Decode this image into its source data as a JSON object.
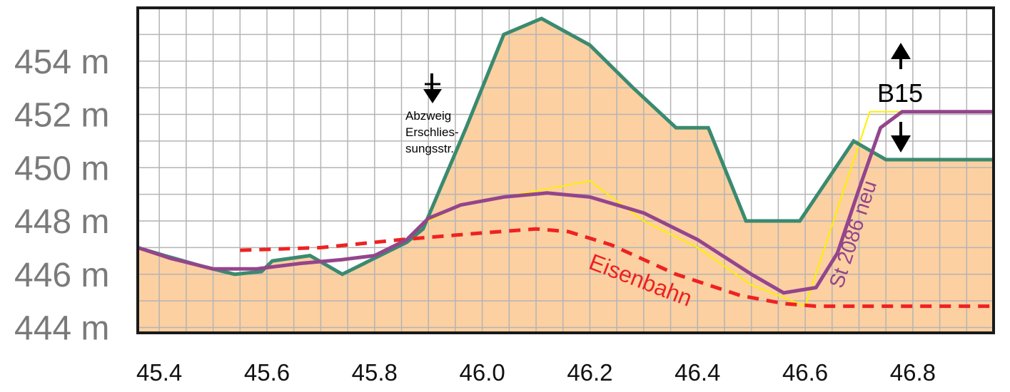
{
  "chart_data": {
    "type": "line",
    "title": "",
    "xlabel": "",
    "ylabel": "",
    "x_ticks": [
      "45.4",
      "45.6",
      "45.8",
      "46.0",
      "46.2",
      "46.4",
      "46.6",
      "46.8"
    ],
    "y_ticks": [
      "444 m",
      "446 m",
      "448 m",
      "450 m",
      "452 m",
      "454 m"
    ],
    "xlim": [
      45.36,
      46.95
    ],
    "ylim": [
      443.8,
      456.0
    ],
    "grid": true,
    "colors": {
      "terrain_fill": "#fcd0a1",
      "terrain_line": "#3a8a70",
      "road_new": "#94458c",
      "railway": "#ee2222",
      "yellow_line": "#ffef00",
      "grid": "#b4b4b4",
      "frame": "#1a1a1a"
    },
    "series": [
      {
        "role": "terrain",
        "x": [
          45.36,
          45.41,
          45.48,
          45.54,
          45.59,
          45.61,
          45.68,
          45.74,
          45.8,
          45.86,
          45.89,
          45.97,
          46.04,
          46.11,
          46.2,
          46.28,
          46.36,
          46.42,
          46.49,
          46.59,
          46.64,
          46.69,
          46.75,
          46.85,
          46.95
        ],
        "y": [
          447.0,
          446.7,
          446.3,
          446.0,
          446.1,
          446.5,
          446.7,
          446.0,
          446.6,
          447.2,
          447.7,
          451.5,
          455.0,
          455.6,
          454.6,
          453.0,
          451.5,
          451.5,
          448.0,
          448.0,
          449.5,
          451.0,
          450.3,
          450.3,
          450.3
        ]
      },
      {
        "name": "St 2086 neu",
        "x": [
          45.36,
          45.42,
          45.5,
          45.58,
          45.66,
          45.74,
          45.8,
          45.86,
          45.9,
          45.96,
          46.04,
          46.12,
          46.2,
          46.3,
          46.4,
          46.5,
          46.56,
          46.62,
          46.66,
          46.7,
          46.74,
          46.78,
          46.86,
          46.95
        ],
        "y": [
          447.0,
          446.6,
          446.2,
          446.2,
          446.4,
          446.55,
          446.7,
          447.3,
          448.1,
          448.6,
          448.9,
          449.05,
          448.9,
          448.3,
          447.3,
          446.0,
          445.3,
          445.5,
          446.8,
          449.2,
          451.5,
          452.1,
          452.1,
          452.1
        ]
      },
      {
        "name": "Eisenbahn",
        "x": [
          45.55,
          45.7,
          45.85,
          46.0,
          46.1,
          46.16,
          46.24,
          46.36,
          46.48,
          46.56,
          46.62,
          46.8,
          46.95
        ],
        "y": [
          446.9,
          447.0,
          447.3,
          447.55,
          447.7,
          447.6,
          447.1,
          446.0,
          445.2,
          444.9,
          444.8,
          444.8,
          444.8
        ]
      },
      {
        "role": "yellow",
        "x": [
          45.74,
          45.8,
          45.86,
          45.9,
          45.96,
          46.04,
          46.12,
          46.2,
          46.3,
          46.4,
          46.5,
          46.6,
          46.72,
          46.74,
          46.78
        ],
        "y": [
          446.5,
          446.7,
          447.3,
          448.0,
          448.6,
          448.9,
          449.2,
          449.5,
          448.0,
          447.0,
          445.6,
          444.8,
          452.1,
          452.1,
          452.1
        ]
      }
    ],
    "annotations": [
      {
        "text": "Abzweig",
        "x": 45.94,
        "y": 452.0
      },
      {
        "text": "Erschlies-",
        "x": 45.94,
        "y": 451.4
      },
      {
        "text": "sungsstr.",
        "x": 45.94,
        "y": 450.8
      },
      {
        "text": "B15",
        "x": 46.76,
        "y": 452.9
      },
      {
        "text": "Eisenbahn",
        "x": 46.3,
        "y": 446.4
      },
      {
        "text": "St 2086 neu",
        "x": 46.71,
        "y": 449.2
      }
    ]
  }
}
